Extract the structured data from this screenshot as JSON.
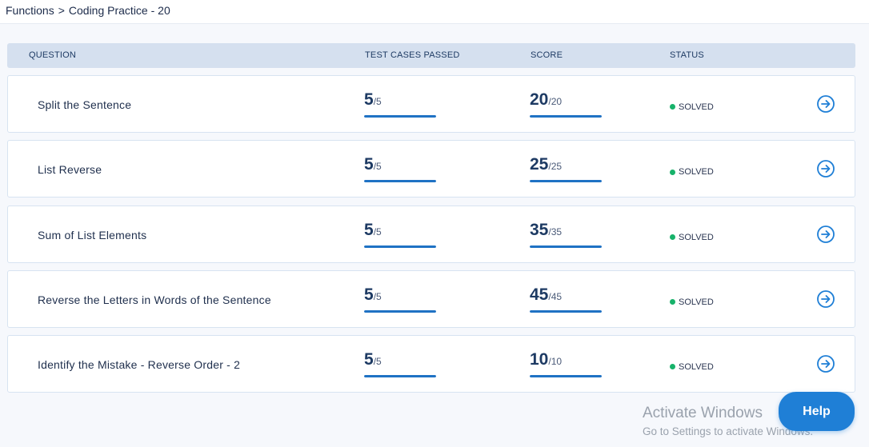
{
  "breadcrumb": {
    "parent": "Functions",
    "separator": ">",
    "current": "Coding Practice - 20"
  },
  "table": {
    "headers": {
      "question": "QUESTION",
      "test_cases": "TEST CASES PASSED",
      "score": "SCORE",
      "status": "STATUS"
    },
    "rows": [
      {
        "question": "Split the Sentence",
        "tests_passed": "5",
        "tests_total": "/5",
        "tests_fraction": 1.0,
        "score": "20",
        "score_total": "/20",
        "score_fraction": 1.0,
        "status": "SOLVED"
      },
      {
        "question": "List Reverse",
        "tests_passed": "5",
        "tests_total": "/5",
        "tests_fraction": 1.0,
        "score": "25",
        "score_total": "/25",
        "score_fraction": 1.0,
        "status": "SOLVED"
      },
      {
        "question": "Sum of List Elements",
        "tests_passed": "5",
        "tests_total": "/5",
        "tests_fraction": 1.0,
        "score": "35",
        "score_total": "/35",
        "score_fraction": 1.0,
        "status": "SOLVED"
      },
      {
        "question": "Reverse the Letters in Words of the Sentence",
        "tests_passed": "5",
        "tests_total": "/5",
        "tests_fraction": 1.0,
        "score": "45",
        "score_total": "/45",
        "score_fraction": 1.0,
        "status": "SOLVED"
      },
      {
        "question": "Identify the Mistake - Reverse Order - 2",
        "tests_passed": "5",
        "tests_total": "/5",
        "tests_fraction": 1.0,
        "score": "10",
        "score_total": "/10",
        "score_fraction": 1.0,
        "status": "SOLVED"
      }
    ]
  },
  "icons": {
    "row_action": "arrow-right-circle-icon"
  },
  "colors": {
    "accent": "#1f72c4",
    "solved": "#17b26a",
    "header_bg": "#d5e0ef",
    "help_bg": "#1f7fd6"
  },
  "watermark": {
    "title": "Activate Windows",
    "subtitle": "Go to Settings to activate Windows."
  },
  "help_button": {
    "label": "Help"
  }
}
